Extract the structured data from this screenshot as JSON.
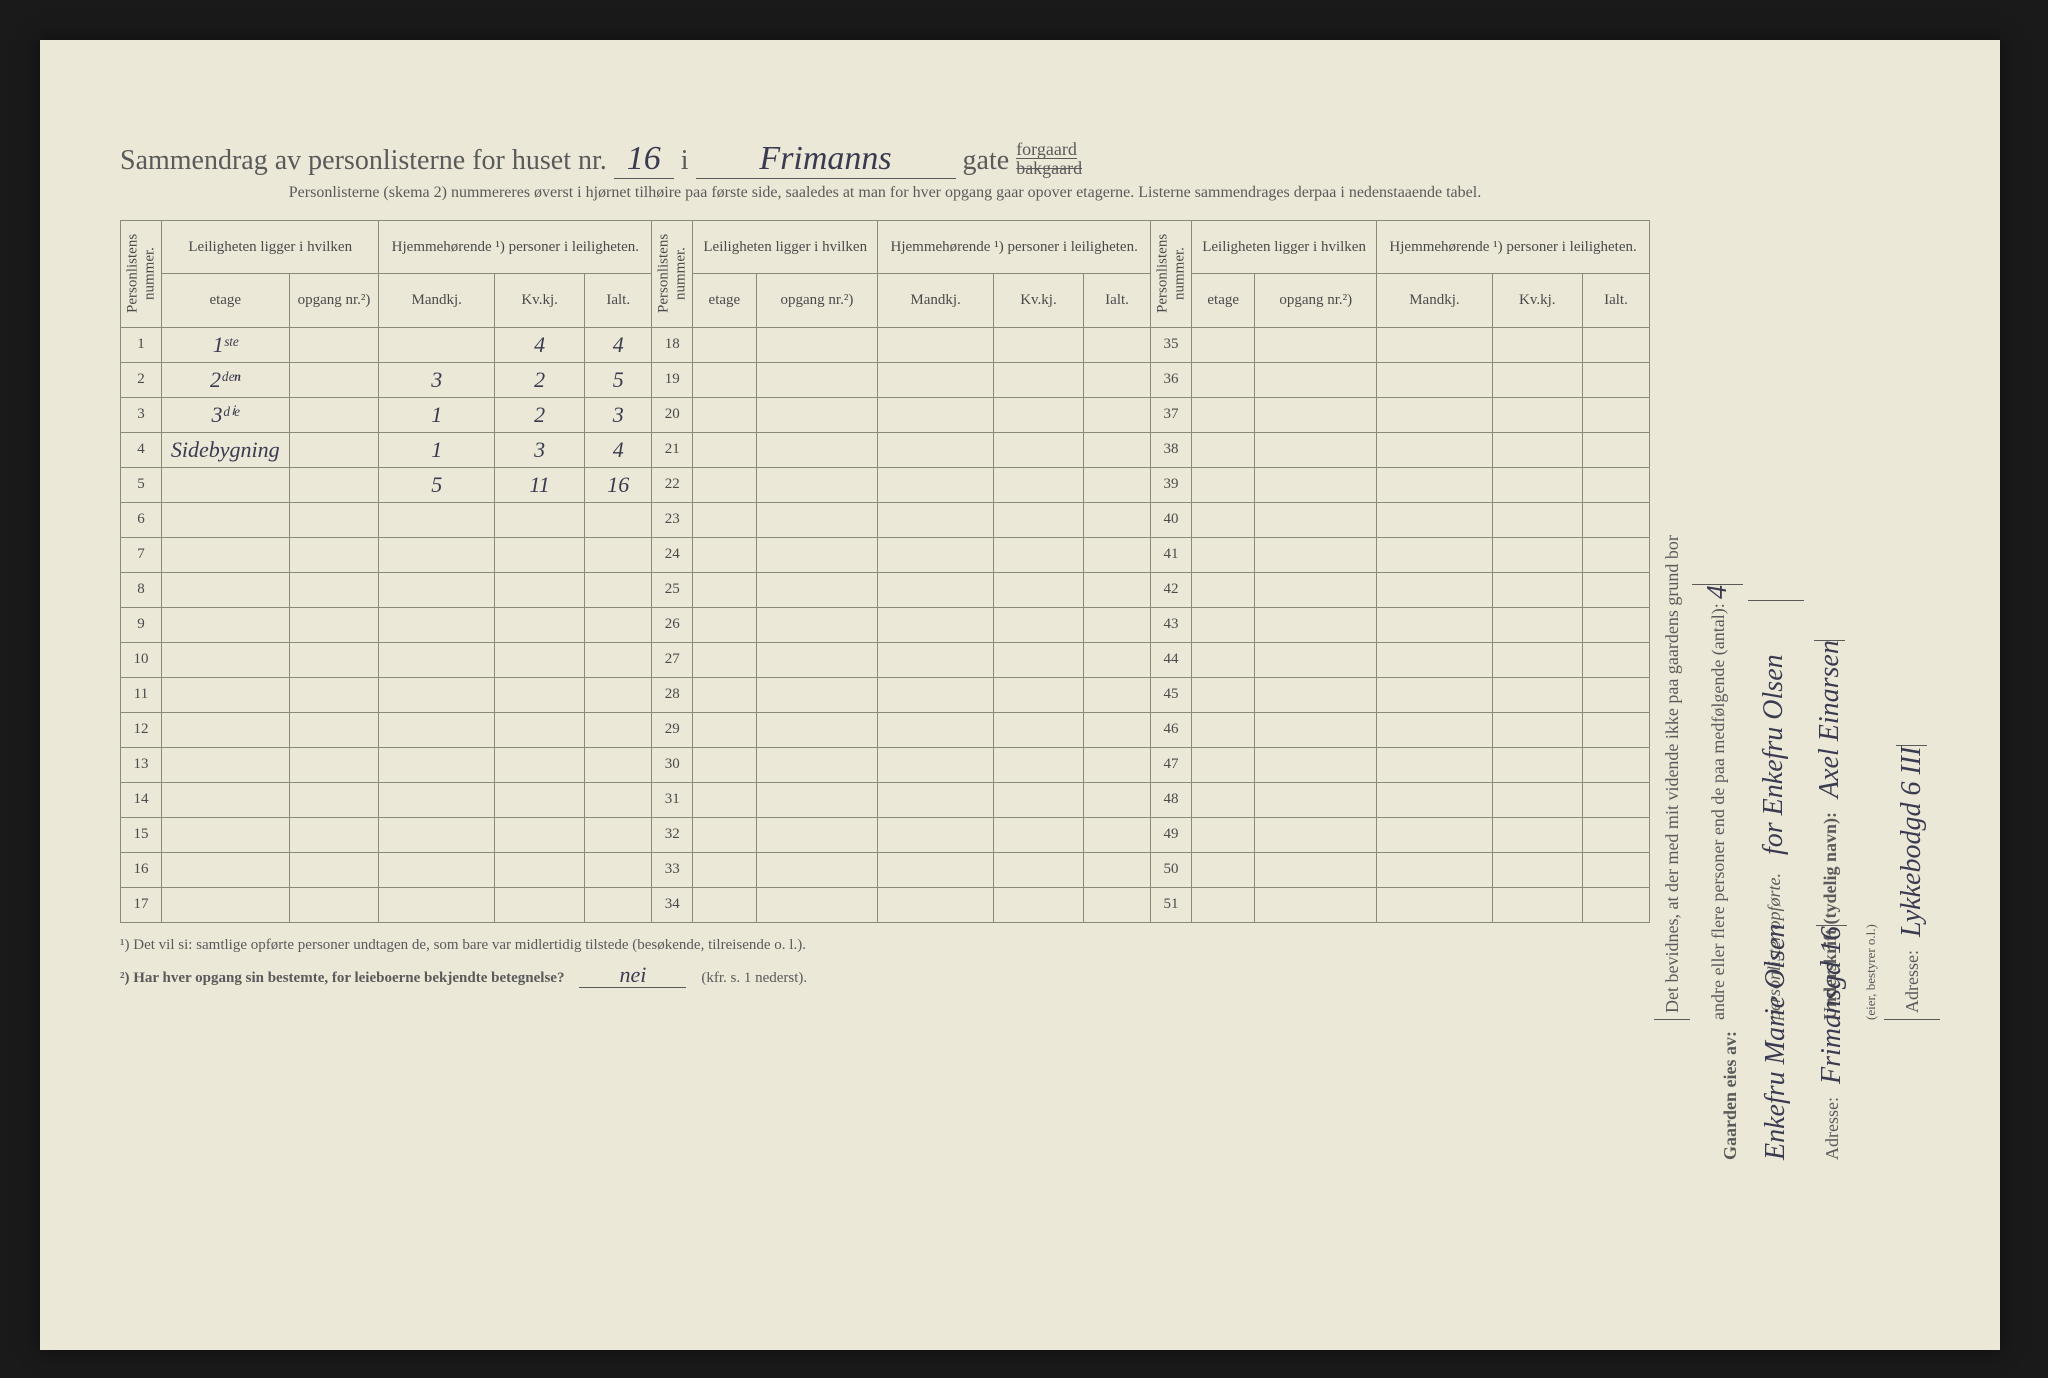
{
  "header": {
    "prefix": "Sammendrag av personlisterne for huset nr.",
    "house_no": "16",
    "i": "i",
    "street": "Frimanns",
    "gate": "gate",
    "suffix_top": "forgaard",
    "suffix_struck": "bakgaard",
    "subtitle": "Personlisterne (skema 2) nummereres øverst i hjørnet tilhøire paa første side, saaledes at man for hver opgang gaar opover etagerne.  Listerne sammendrages derpaa i nedenstaaende tabel."
  },
  "columns": {
    "personlist_no": "Personlistens nummer.",
    "leilighet_group": "Leiligheten ligger i hvilken",
    "etage": "etage",
    "opgang": "opgang nr.²)",
    "hjem_group": "Hjemmehørende ¹) personer i leiligheten.",
    "mand": "Mandkj.",
    "kv": "Kv.kj.",
    "ialt": "Ialt."
  },
  "rows": [
    {
      "n": "1",
      "etage": "1ˢᵗᵉ",
      "opg": "",
      "m": "",
      "k": "4",
      "i": "4"
    },
    {
      "n": "2",
      "etage": "2ᵈᵉⁿ",
      "opg": "",
      "m": "3",
      "k": "2",
      "i": "5"
    },
    {
      "n": "3",
      "etage": "3ᵈⁱᵉ",
      "opg": "",
      "m": "1",
      "k": "2",
      "i": "3"
    },
    {
      "n": "4",
      "etage": "Sidebygning",
      "opg": "",
      "m": "1",
      "k": "3",
      "i": "4"
    },
    {
      "n": "5",
      "etage": "",
      "opg": "",
      "m": "5",
      "k": "11",
      "i": "16"
    },
    {
      "n": "6"
    },
    {
      "n": "7"
    },
    {
      "n": "8"
    },
    {
      "n": "9"
    },
    {
      "n": "10"
    },
    {
      "n": "11"
    },
    {
      "n": "12"
    },
    {
      "n": "13"
    },
    {
      "n": "14"
    },
    {
      "n": "15"
    },
    {
      "n": "16"
    },
    {
      "n": "17"
    }
  ],
  "rows2_start": 18,
  "rows2_end": 34,
  "rows3_start": 35,
  "rows3_end": 51,
  "footnotes": {
    "f1": "¹)  Det vil si: samtlige opførte personer undtagen de, som bare var midlertidig tilstede (besøkende, tilreisende o. l.).",
    "f2_label": "²)  Har hver opgang sin bestemte, for leieboerne bekjendte betegnelse?",
    "f2_answer": "nei",
    "f2_tail": "(kfr. s. 1 nederst)."
  },
  "side_right1": {
    "line1": "Det bevidnes, at der med mit vidende ikke paa gaardens grund bor",
    "line2a": "andre eller flere personer end de paa medfølgende (antal):",
    "line2b": "4",
    "line3": "personlister opførte.",
    "line3_hand": "for Enkefru Olsen",
    "line4_label": "Underskrift (tydelig navn):",
    "line4_hand": "Axel Einarsen",
    "line5_small": "(eier, bestyrer o.l.)",
    "line6_label": "Adresse:",
    "line6_hand": "Lykkebodgd 6 III"
  },
  "side_right2": {
    "label1": "Gaarden eies av:",
    "hand1": "Enkefru Marie Olsen",
    "label2": "Adresse:",
    "hand2": "Frimansgd 16"
  }
}
